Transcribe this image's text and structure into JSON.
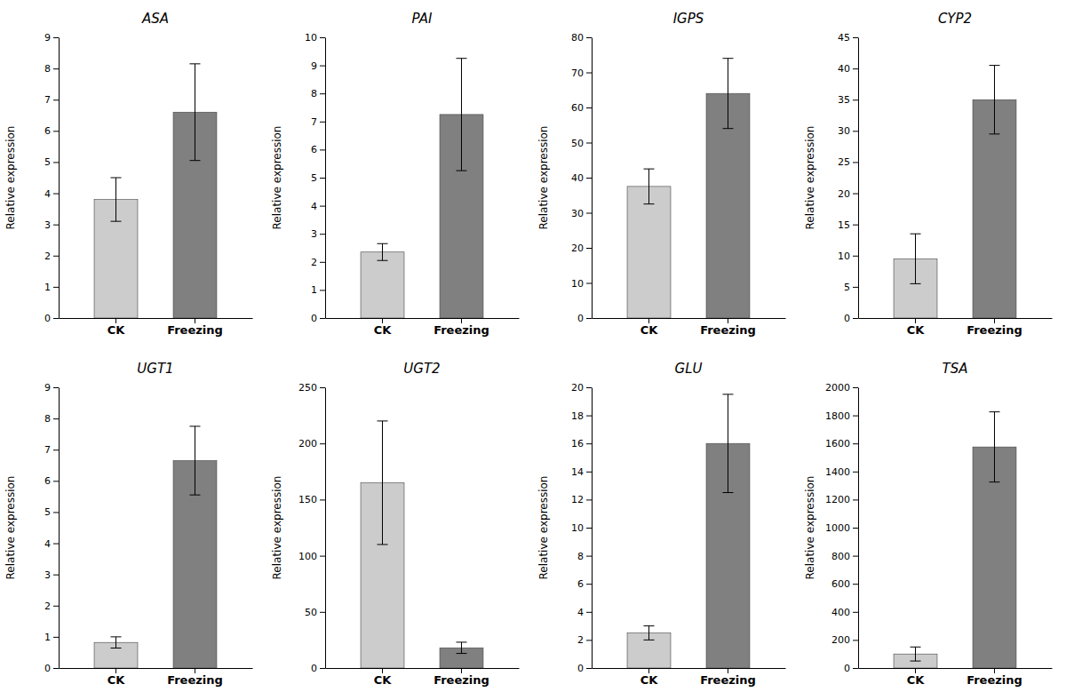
{
  "chart_data": [
    {
      "type": "bar",
      "title": "ASA",
      "ylabel": "Relative expression",
      "categories": [
        "CK",
        "Freezing"
      ],
      "values": [
        3.8,
        6.6
      ],
      "errors": [
        0.7,
        1.55
      ],
      "colors": [
        "#cccccc",
        "#808080"
      ],
      "ylim": [
        0,
        9
      ],
      "yticks": [
        0,
        1,
        2,
        3,
        4,
        5,
        6,
        7,
        8,
        9
      ]
    },
    {
      "type": "bar",
      "title": "PAI",
      "ylabel": "Relative expression",
      "categories": [
        "CK",
        "Freezing"
      ],
      "values": [
        2.35,
        7.25
      ],
      "errors": [
        0.3,
        2.0
      ],
      "colors": [
        "#cccccc",
        "#808080"
      ],
      "ylim": [
        0,
        10
      ],
      "yticks": [
        0,
        1,
        2,
        3,
        4,
        5,
        6,
        7,
        8,
        9,
        10
      ]
    },
    {
      "type": "bar",
      "title": "IGPS",
      "ylabel": "Relative expression",
      "categories": [
        "CK",
        "Freezing"
      ],
      "values": [
        37.5,
        64.0
      ],
      "errors": [
        5.0,
        10.0
      ],
      "colors": [
        "#cccccc",
        "#808080"
      ],
      "ylim": [
        0,
        80
      ],
      "yticks": [
        0,
        10,
        20,
        30,
        40,
        50,
        60,
        70,
        80
      ]
    },
    {
      "type": "bar",
      "title": "CYP2",
      "ylabel": "Relative expression",
      "categories": [
        "CK",
        "Freezing"
      ],
      "values": [
        9.5,
        35.0
      ],
      "errors": [
        4.0,
        5.5
      ],
      "colors": [
        "#cccccc",
        "#808080"
      ],
      "ylim": [
        0,
        45
      ],
      "yticks": [
        0,
        5,
        10,
        15,
        20,
        25,
        30,
        35,
        40,
        45
      ]
    },
    {
      "type": "bar",
      "title": "UGT1",
      "ylabel": "Relative expression",
      "categories": [
        "CK",
        "Freezing"
      ],
      "values": [
        0.82,
        6.65
      ],
      "errors": [
        0.18,
        1.1
      ],
      "colors": [
        "#cccccc",
        "#808080"
      ],
      "ylim": [
        0,
        9
      ],
      "yticks": [
        0,
        1,
        2,
        3,
        4,
        5,
        6,
        7,
        8,
        9
      ]
    },
    {
      "type": "bar",
      "title": "UGT2",
      "ylabel": "Relative expression",
      "categories": [
        "CK",
        "Freezing"
      ],
      "values": [
        165.0,
        18.0
      ],
      "errors": [
        55.0,
        5.0
      ],
      "colors": [
        "#cccccc",
        "#808080"
      ],
      "ylim": [
        0,
        250
      ],
      "yticks": [
        0,
        50,
        100,
        150,
        200,
        250
      ]
    },
    {
      "type": "bar",
      "title": "GLU",
      "ylabel": "Relative expression",
      "categories": [
        "CK",
        "Freezing"
      ],
      "values": [
        2.5,
        16.0
      ],
      "errors": [
        0.5,
        3.5
      ],
      "colors": [
        "#cccccc",
        "#808080"
      ],
      "ylim": [
        0,
        20
      ],
      "yticks": [
        0,
        2,
        4,
        6,
        8,
        10,
        12,
        14,
        16,
        18,
        20
      ]
    },
    {
      "type": "bar",
      "title": "TSA",
      "ylabel": "Relative expression",
      "categories": [
        "CK",
        "Freezing"
      ],
      "values": [
        100.0,
        1575.0
      ],
      "errors": [
        50.0,
        250.0
      ],
      "colors": [
        "#cccccc",
        "#808080"
      ],
      "ylim": [
        0,
        2000
      ],
      "yticks": [
        0,
        200,
        400,
        600,
        800,
        1000,
        1200,
        1400,
        1600,
        1800,
        2000
      ]
    }
  ]
}
